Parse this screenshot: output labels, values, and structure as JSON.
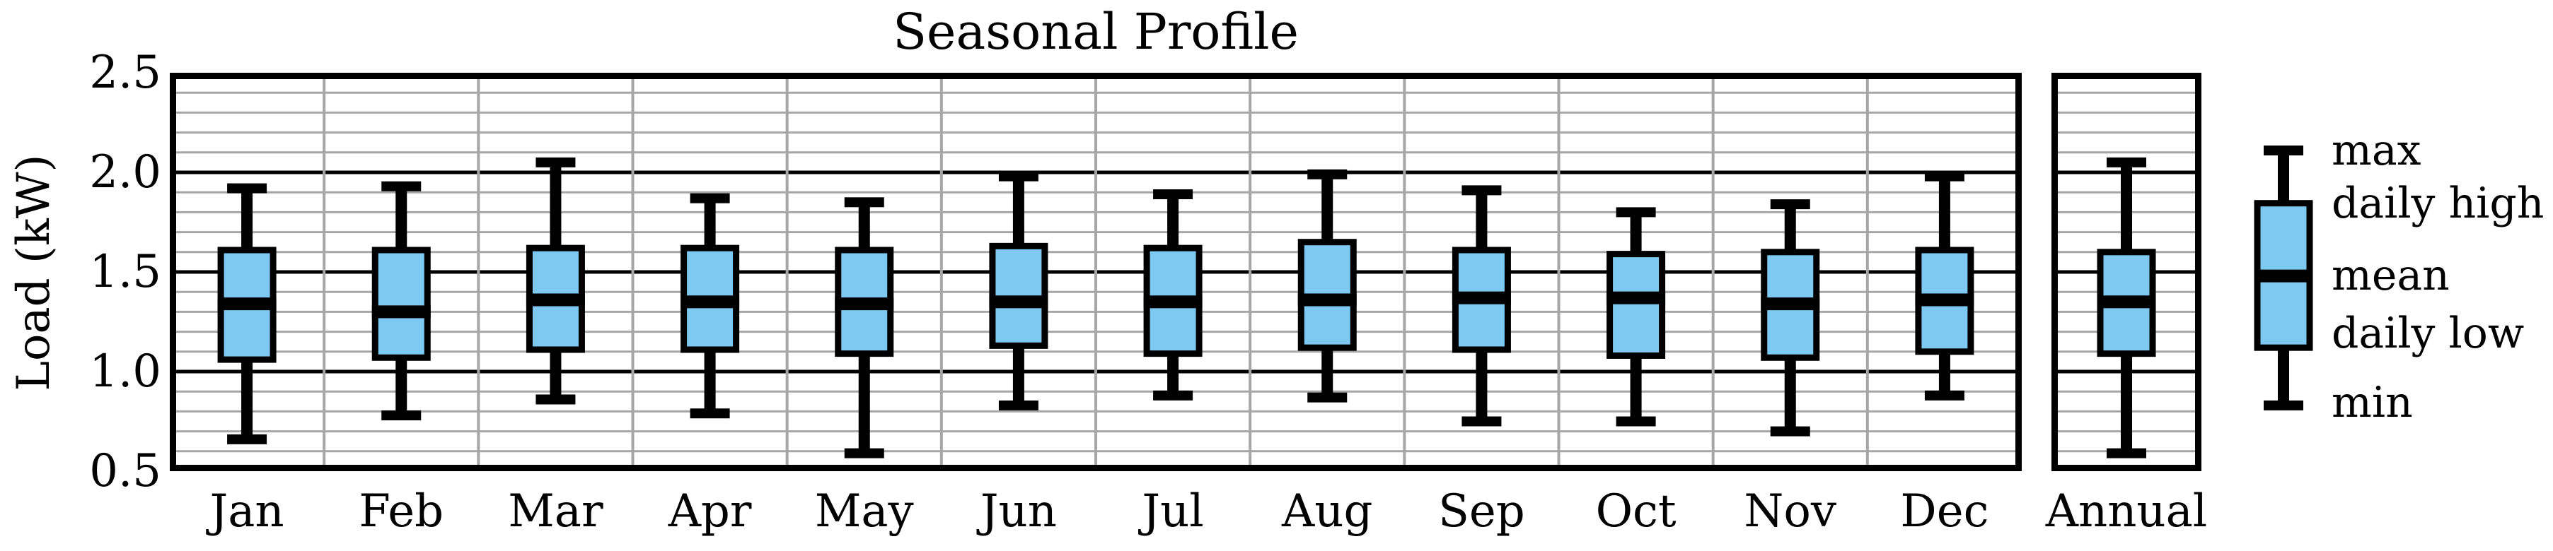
{
  "chart_data": {
    "type": "box",
    "title": "Seasonal Profile",
    "ylabel": "Load (kW)",
    "ylim": [
      0.5,
      2.5
    ],
    "ytick_labels": [
      "2.5",
      "2.0",
      "1.5",
      "1.0",
      "0.5"
    ],
    "ytick_values": [
      2.5,
      2.0,
      1.5,
      1.0,
      0.5
    ],
    "minor_grid_step": 0.1,
    "major_grid_step": 0.5,
    "grid": "on",
    "legend_position": "right",
    "categories": [
      "Jan",
      "Feb",
      "Mar",
      "Apr",
      "May",
      "Jun",
      "Jul",
      "Aug",
      "Sep",
      "Oct",
      "Nov",
      "Dec"
    ],
    "series": [
      {
        "name": "max",
        "values": [
          1.92,
          1.93,
          2.05,
          1.87,
          1.85,
          1.98,
          1.89,
          1.99,
          1.91,
          1.8,
          1.84,
          1.98
        ]
      },
      {
        "name": "daily high",
        "values": [
          1.61,
          1.61,
          1.62,
          1.62,
          1.61,
          1.63,
          1.62,
          1.65,
          1.61,
          1.59,
          1.6,
          1.61
        ]
      },
      {
        "name": "mean",
        "values": [
          1.34,
          1.3,
          1.36,
          1.35,
          1.34,
          1.35,
          1.35,
          1.36,
          1.37,
          1.37,
          1.34,
          1.36
        ]
      },
      {
        "name": "daily low",
        "values": [
          1.06,
          1.07,
          1.11,
          1.11,
          1.09,
          1.13,
          1.09,
          1.12,
          1.11,
          1.08,
          1.07,
          1.1
        ]
      },
      {
        "name": "min",
        "values": [
          0.66,
          0.78,
          0.86,
          0.79,
          0.59,
          0.83,
          0.88,
          0.87,
          0.75,
          0.75,
          0.7,
          0.88
        ]
      }
    ],
    "annual": {
      "label": "Annual",
      "max": 2.05,
      "daily_high": 1.6,
      "mean": 1.35,
      "daily_low": 1.09,
      "min": 0.59
    },
    "legend_labels": [
      "max",
      "daily high",
      "mean",
      "daily low",
      "min"
    ],
    "colors": {
      "box_fill": "#7EC9F2",
      "line": "#000000",
      "major_grid": "#000000",
      "minor_grid": "#A6A6A6",
      "month_separator": "#A6A6A6",
      "background": "#FFFFFF"
    }
  }
}
